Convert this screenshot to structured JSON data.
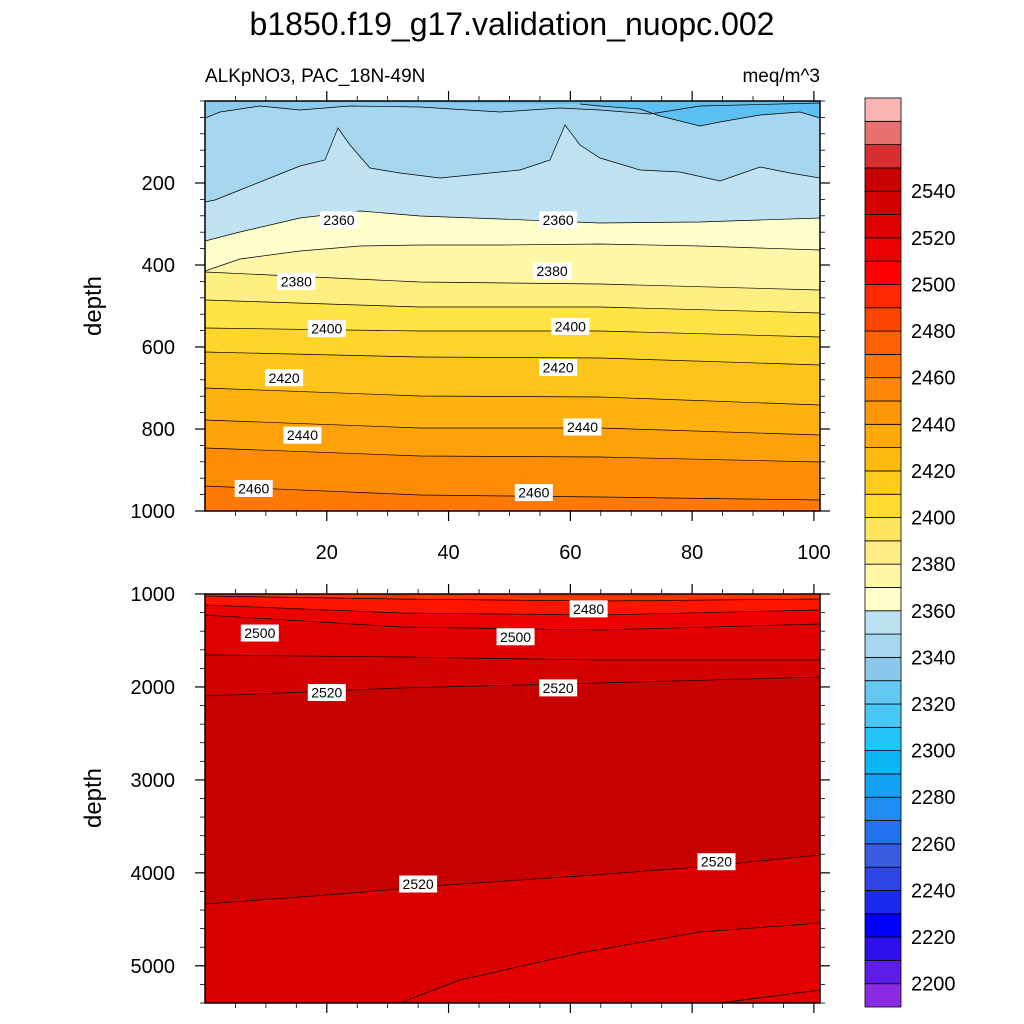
{
  "title": "b1850.f19_g17.validation_nuopc.002",
  "left_string": "ALKpNO3, PAC_18N-49N",
  "right_string": "meq/m^3",
  "chart_data": [
    {
      "type": "contour",
      "panel": "top",
      "ylabel": "depth",
      "xlabel": "",
      "xlim": [
        0,
        101
      ],
      "ylim": [
        1000,
        0
      ],
      "x_ticks": [
        20,
        40,
        60,
        80,
        100
      ],
      "y_ticks": [
        200,
        400,
        600,
        800,
        1000
      ],
      "contour_interval": 10,
      "contour_labels": [
        {
          "text": "2360",
          "x": 22,
          "y": 290
        },
        {
          "text": "2360",
          "x": 58,
          "y": 290
        },
        {
          "text": "2380",
          "x": 15,
          "y": 440
        },
        {
          "text": "2380",
          "x": 57,
          "y": 415
        },
        {
          "text": "2400",
          "x": 20,
          "y": 555
        },
        {
          "text": "2400",
          "x": 60,
          "y": 550
        },
        {
          "text": "2420",
          "x": 13,
          "y": 675
        },
        {
          "text": "2420",
          "x": 58,
          "y": 650
        },
        {
          "text": "2440",
          "x": 16,
          "y": 815
        },
        {
          "text": "2440",
          "x": 62,
          "y": 795
        },
        {
          "text": "2460",
          "x": 8,
          "y": 945
        },
        {
          "text": "2460",
          "x": 54,
          "y": 955
        }
      ]
    },
    {
      "type": "contour",
      "panel": "bottom",
      "ylabel": "depth",
      "xlabel": "",
      "xlim": [
        0,
        101
      ],
      "ylim": [
        5400,
        1000
      ],
      "y_ticks": [
        1000,
        2000,
        3000,
        4000,
        5000
      ],
      "contour_interval": 10,
      "contour_labels": [
        {
          "text": "2480",
          "x": 63,
          "y": 1160
        },
        {
          "text": "2500",
          "x": 9,
          "y": 1420
        },
        {
          "text": "2500",
          "x": 51,
          "y": 1460
        },
        {
          "text": "2520",
          "x": 20,
          "y": 2060
        },
        {
          "text": "2520",
          "x": 58,
          "y": 2010
        },
        {
          "text": "2520",
          "x": 35,
          "y": 4120
        },
        {
          "text": "2520",
          "x": 84,
          "y": 3880
        }
      ]
    }
  ],
  "colorbar": {
    "labels": [
      "2200",
      "2220",
      "2240",
      "2260",
      "2280",
      "2300",
      "2320",
      "2340",
      "2360",
      "2380",
      "2400",
      "2420",
      "2440",
      "2460",
      "2480",
      "2500",
      "2520",
      "2540"
    ],
    "colors": [
      "#8B2BE2",
      "#5C1DE8",
      "#2E10EE",
      "#0000FF",
      "#1A2BEF",
      "#2D44E6",
      "#3A5CE0",
      "#2272F0",
      "#1E8EF4",
      "#12A2F5",
      "#0CB6F6",
      "#23C4F8",
      "#4AC8F5",
      "#63C9F2",
      "#8AC9EC",
      "#A5D8EE",
      "#BCE2F2",
      "#FFFFCC",
      "#FFF6A6",
      "#FFEE88",
      "#FFE45E",
      "#FFDB30",
      "#FFCC1E",
      "#FFBB10",
      "#FFA909",
      "#FF9608",
      "#FF8606",
      "#FF7504",
      "#FF6002",
      "#FF4600",
      "#FF2800",
      "#FF0000",
      "#EE0000",
      "#E00000",
      "#D40000",
      "#C80000",
      "#D63030",
      "#E87070",
      "#FAB4B4"
    ]
  }
}
